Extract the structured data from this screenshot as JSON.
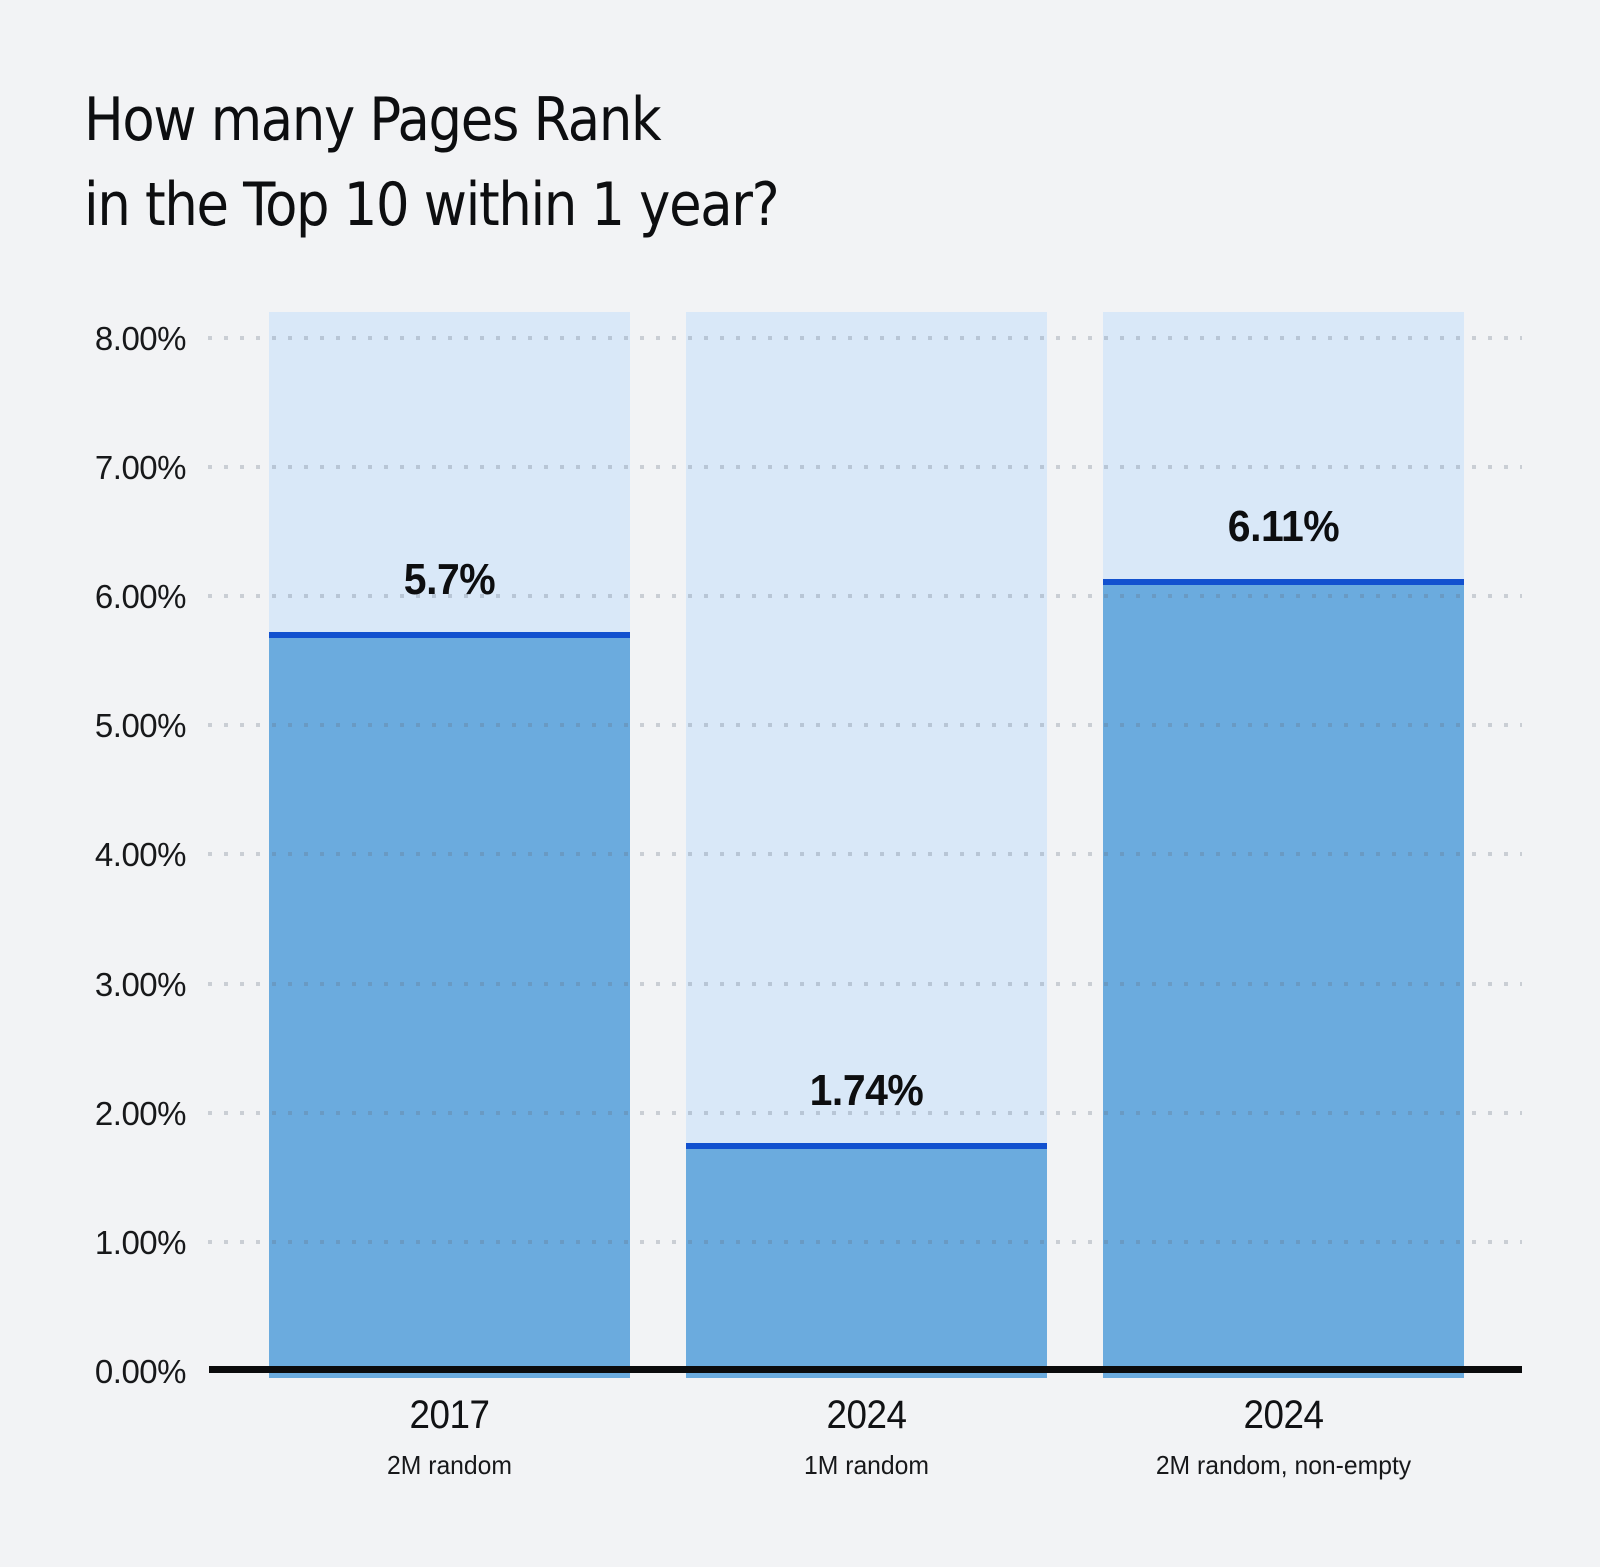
{
  "chart_data": {
    "type": "bar",
    "title_lines": [
      "How many Pages Rank",
      "in the Top 10 within 1 year?"
    ],
    "categories": [
      "2017",
      "2024",
      "2024"
    ],
    "category_sublabels": [
      "2M random",
      "1M random",
      "2M random, non-empty"
    ],
    "values": [
      5.7,
      1.74,
      6.11
    ],
    "value_labels": [
      "5.7%",
      "1.74%",
      "6.11%"
    ],
    "ylim": [
      0,
      8.2
    ],
    "ytick_values": [
      0,
      1,
      2,
      3,
      4,
      5,
      6,
      7,
      8
    ],
    "ytick_labels": [
      "0.00%",
      "1.00%",
      "2.00%",
      "3.00%",
      "4.00%",
      "5.00%",
      "6.00%",
      "7.00%",
      "8.00%"
    ],
    "grid": "horizontal dotted, at each 1% from 1% to 8%",
    "legend_position": "none",
    "colors": {
      "page_background": "#f2f3f5",
      "column_background": "#d9e8f8",
      "bar_fill": "#6babde",
      "bar_top_line": "#1251cf",
      "axis_line": "#0b0b0c",
      "grid_dot": "#c9ccd2",
      "title_text": "#0d0e10",
      "label_text": "#17181a"
    }
  }
}
